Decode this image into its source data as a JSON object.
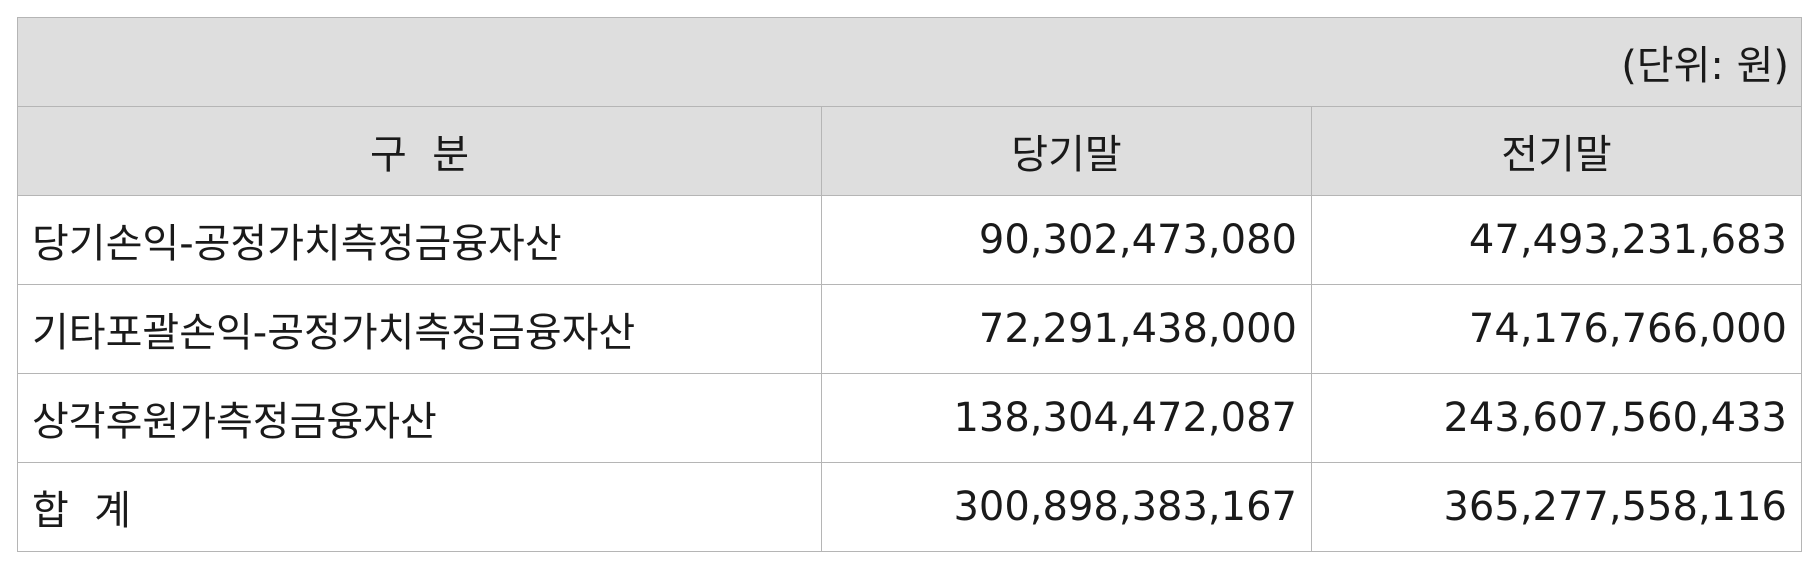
{
  "unit_note": "(단위: 원)",
  "table": {
    "headers": [
      "구  분",
      "당기말",
      "전기말"
    ],
    "rows": [
      {
        "label": "당기손익-공정가치측정금융자산",
        "current": "90,302,473,080",
        "prior": "47,493,231,683"
      },
      {
        "label": "기타포괄손익-공정가치측정금융자산",
        "current": "72,291,438,000",
        "prior": "74,176,766,000"
      },
      {
        "label": "상각후원가측정금융자산",
        "current": "138,304,472,087",
        "prior": "243,607,560,433"
      },
      {
        "label": "합  계",
        "current": "300,898,383,167",
        "prior": "365,277,558,116"
      }
    ]
  }
}
